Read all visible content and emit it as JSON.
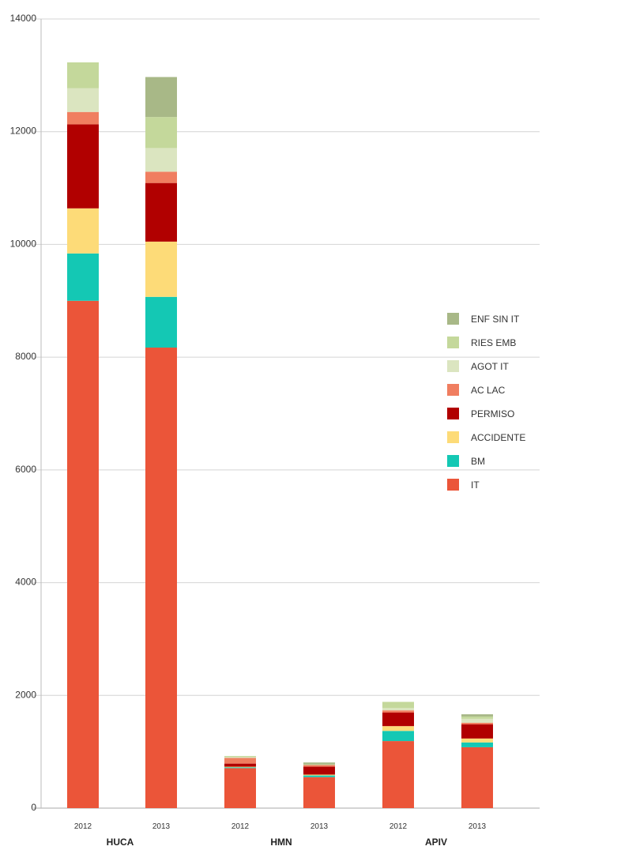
{
  "chart_data": {
    "type": "bar",
    "stacked": true,
    "title": "",
    "xlabel": "",
    "ylabel": "",
    "ylim": [
      0,
      14000
    ],
    "yticks": [
      0,
      2000,
      4000,
      6000,
      8000,
      10000,
      12000,
      14000
    ],
    "grid": true,
    "legend_position": "right",
    "groups": [
      "HUCA",
      "HMN",
      "APIV"
    ],
    "categories": [
      "2012",
      "2013",
      "2012",
      "2013",
      "2012",
      "2013"
    ],
    "category_groups": [
      "HUCA",
      "HUCA",
      "HMN",
      "HMN",
      "APIV",
      "APIV"
    ],
    "series": [
      {
        "name": "IT",
        "color": "#EB5539",
        "values": [
          9000,
          8170,
          710,
          550,
          1190,
          1080
        ]
      },
      {
        "name": "BM",
        "color": "#14C8B4",
        "values": [
          840,
          900,
          15,
          30,
          180,
          85
        ]
      },
      {
        "name": "ACCIDENTE",
        "color": "#FDDB78",
        "values": [
          800,
          980,
          10,
          15,
          85,
          70
        ]
      },
      {
        "name": "PERMISO",
        "color": "#B10000",
        "values": [
          1490,
          1040,
          55,
          140,
          240,
          250
        ]
      },
      {
        "name": "AC LAC",
        "color": "#F07E60",
        "values": [
          220,
          200,
          100,
          30,
          40,
          30
        ]
      },
      {
        "name": "AGOT IT",
        "color": "#DBE5C0",
        "values": [
          420,
          420,
          20,
          0,
          40,
          70
        ]
      },
      {
        "name": "RIES EMB",
        "color": "#C4D89B",
        "values": [
          460,
          550,
          15,
          10,
          110,
          40
        ]
      },
      {
        "name": "ENF SIN IT",
        "color": "#A8B887",
        "values": [
          0,
          710,
          0,
          35,
          0,
          40
        ]
      }
    ]
  }
}
